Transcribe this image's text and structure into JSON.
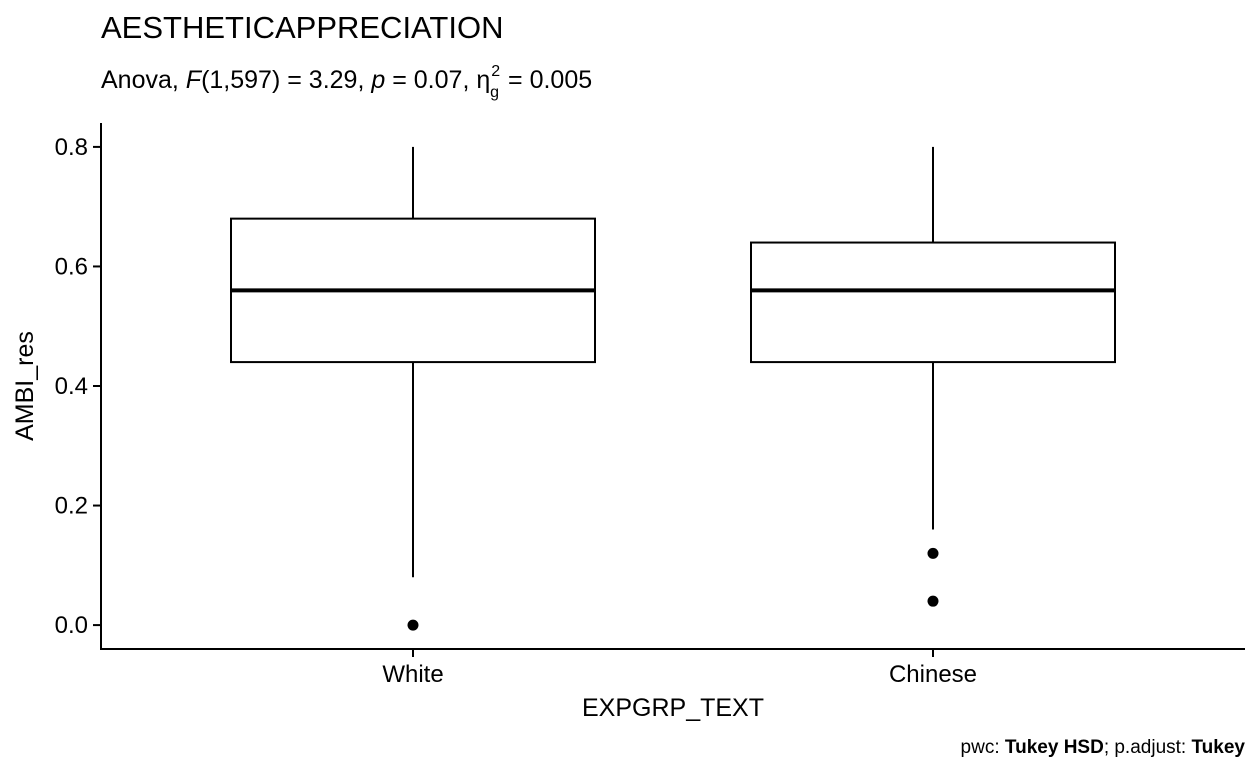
{
  "chart_data": {
    "type": "box",
    "title": "AESTHETICAPPRECIATION",
    "subtitle": {
      "test": "Anova",
      "stat_symbol": "F",
      "df": "(1,597)",
      "stat_value": "3.29",
      "p_symbol": "p",
      "p_value": "0.07",
      "effect_symbol": "η",
      "effect_superscript": "2",
      "effect_subscript": "g",
      "effect_value": "0.005"
    },
    "xlabel": "EXPGRP_TEXT",
    "ylabel": "AMBI_res",
    "categories": [
      "White",
      "Chinese"
    ],
    "y_ticks": [
      0.0,
      0.2,
      0.4,
      0.6,
      0.8
    ],
    "y_tick_labels": [
      "0.0",
      "0.2",
      "0.4",
      "0.6",
      "0.8"
    ],
    "ylim": [
      -0.04,
      0.84
    ],
    "grid": false,
    "boxes": [
      {
        "category": "White",
        "whisker_low": 0.08,
        "q1": 0.44,
        "median": 0.56,
        "q3": 0.68,
        "whisker_high": 0.8,
        "outliers": [
          0.0
        ]
      },
      {
        "category": "Chinese",
        "whisker_low": 0.16,
        "q1": 0.44,
        "median": 0.56,
        "q3": 0.64,
        "whisker_high": 0.8,
        "outliers": [
          0.12,
          0.04
        ]
      }
    ],
    "caption": {
      "pwc_label": "pwc: ",
      "pwc_value": "Tukey HSD",
      "separator": "; p.adjust: ",
      "adjust_value": "Tukey"
    },
    "colors": {
      "box_fill": "#ffffff",
      "line": "#000000",
      "background": "#ffffff"
    }
  }
}
